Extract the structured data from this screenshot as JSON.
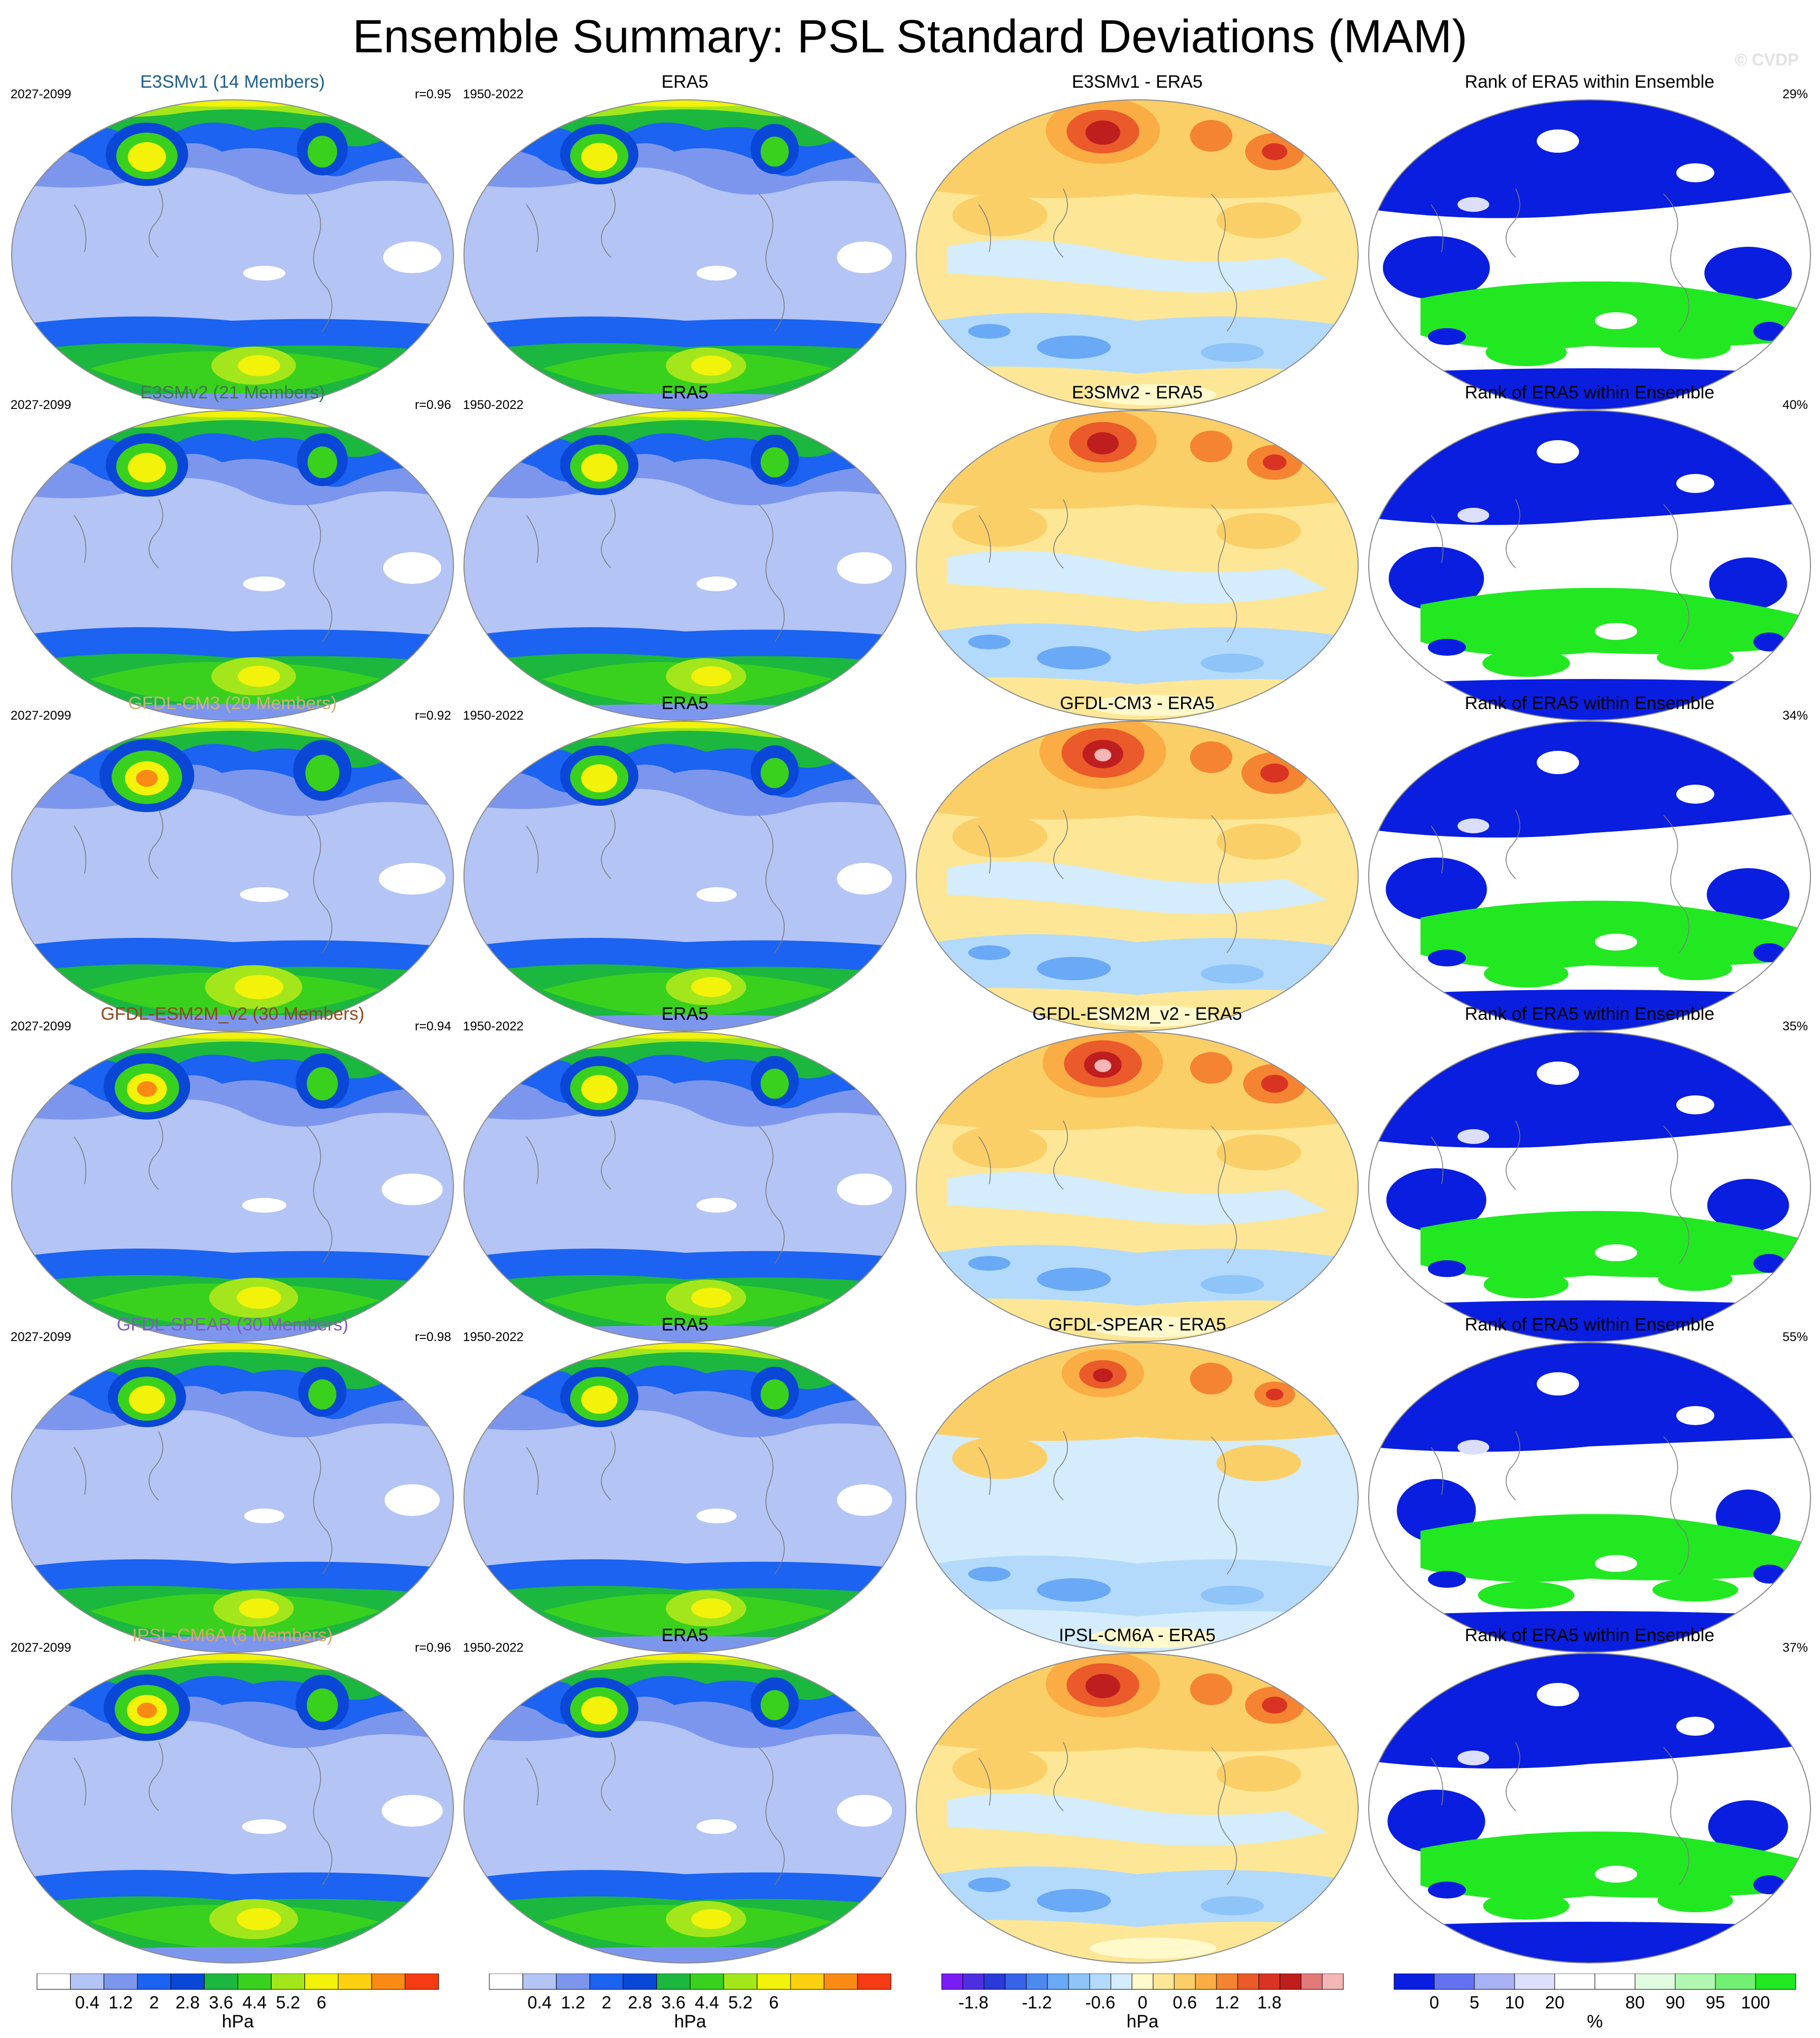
{
  "title": "Ensemble Summary: PSL Standard Deviations (MAM)",
  "watermark": "© CVDP",
  "rows": [
    {
      "model": "E3SMv1 (14 Members)",
      "model_color": "#1f5f8b",
      "period": "2027-2099",
      "r": "r=0.95",
      "diff_title": "E3SMv1 - ERA5",
      "rank_pct": "29%",
      "model_intensity": 1.0,
      "diff_bias": 0.6,
      "rank_green": 0.28
    },
    {
      "model": "E3SMv2 (21 Members)",
      "model_color": "#3d7a4a",
      "period": "2027-2099",
      "r": "r=0.96",
      "diff_title": "E3SMv2 - ERA5",
      "rank_pct": "40%",
      "model_intensity": 1.0,
      "diff_bias": 0.5,
      "rank_green": 0.38
    },
    {
      "model": "GFDL-CM3 (20 Members)",
      "model_color": "#c8b27a",
      "period": "2027-2099",
      "r": "r=0.92",
      "diff_title": "GFDL-CM3 - ERA5",
      "rank_pct": "34%",
      "model_intensity": 1.15,
      "diff_bias": 0.8,
      "rank_green": 0.33
    },
    {
      "model": "GFDL-ESM2M_v2 (30 Members)",
      "model_color": "#8b4a1f",
      "period": "2027-2099",
      "r": "r=0.94",
      "diff_title": "GFDL-ESM2M_v2 - ERA5",
      "rank_pct": "35%",
      "model_intensity": 1.05,
      "diff_bias": 0.7,
      "rank_green": 0.34
    },
    {
      "model": "GFDL-SPEAR (30 Members)",
      "model_color": "#7f5fb5",
      "period": "2027-2099",
      "r": "r=0.98",
      "diff_title": "GFDL-SPEAR - ERA5",
      "rank_pct": "55%",
      "model_intensity": 0.95,
      "diff_bias": 0.1,
      "rank_green": 0.52
    },
    {
      "model": "IPSL-CM6A (6 Members)",
      "model_color": "#d9a66a",
      "period": "2027-2099",
      "r": "r=0.96",
      "diff_title": "IPSL-CM6A - ERA5",
      "rank_pct": "37%",
      "model_intensity": 1.05,
      "diff_bias": 0.6,
      "rank_green": 0.36
    }
  ],
  "obs": {
    "title": "ERA5",
    "period": "1950-2022"
  },
  "rank_title": "Rank of ERA5 within Ensemble",
  "colorbars": {
    "std": {
      "colors": [
        "#ffffff",
        "#b3c4f5",
        "#7d96ed",
        "#1b63f0",
        "#0a47d6",
        "#1cb73f",
        "#3ad11e",
        "#a4e61c",
        "#f2f20a",
        "#fbd10f",
        "#f98a14",
        "#f53b13"
      ],
      "ticks": [
        "0.4",
        "1.2",
        "2",
        "2.8",
        "3.6",
        "4.4",
        "5.2",
        "6"
      ],
      "unit": "hPa"
    },
    "diff": {
      "colors": [
        "#7a1df5",
        "#4d2fe0",
        "#2a3ad6",
        "#3663e8",
        "#4c8af0",
        "#6aa9f6",
        "#8fc4f9",
        "#b3dafb",
        "#d4ecfb",
        "#fff9cc",
        "#fde796",
        "#fbcf68",
        "#f9ad44",
        "#f48431",
        "#ea5a2a",
        "#d93423",
        "#bf1e1e",
        "#e37a7a",
        "#f4b6b6"
      ],
      "ticks": [
        "-1.8",
        "-1.2",
        "-0.6",
        "0",
        "0.6",
        "1.2",
        "1.8"
      ],
      "unit": "hPa"
    },
    "rank": {
      "colors": [
        "#0a1ee0",
        "#6272f0",
        "#a9b2f5",
        "#dcdffb",
        "#ffffff",
        "#ffffff",
        "#e0fbe0",
        "#b1f7b1",
        "#73f073",
        "#22e822"
      ],
      "ticks": [
        "0",
        "5",
        "10",
        "20",
        "80",
        "90",
        "95",
        "100"
      ],
      "unit": "%"
    }
  }
}
